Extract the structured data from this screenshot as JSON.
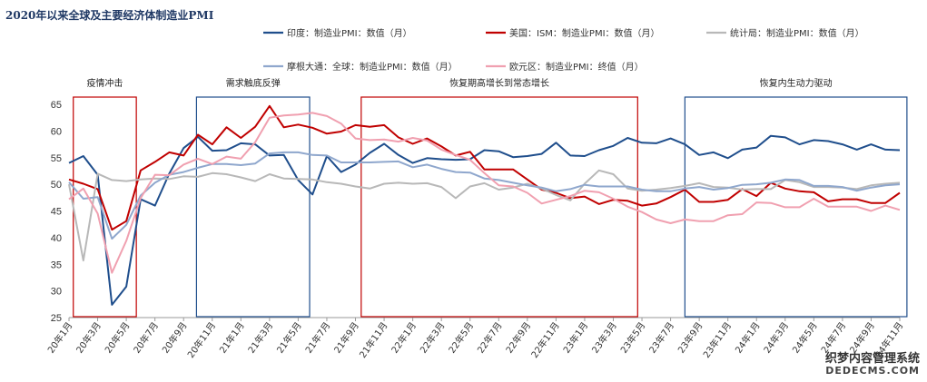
{
  "chart_data": {
    "type": "line",
    "title": "2020年以来全球及主要经济体制造业PMI",
    "ylim": [
      25,
      65
    ],
    "yticks": [
      25,
      30,
      35,
      40,
      45,
      50,
      55,
      60,
      65
    ],
    "x_labels": [
      "20年1月",
      "20年3月",
      "20年5月",
      "20年7月",
      "20年9月",
      "20年11月",
      "21年1月",
      "21年3月",
      "21年5月",
      "21年7月",
      "21年9月",
      "21年11月",
      "22年1月",
      "22年3月",
      "22年5月",
      "22年7月",
      "22年9月",
      "22年11月",
      "23年1月",
      "23年3月",
      "23年5月",
      "23年7月",
      "23年9月",
      "23年11月",
      "24年1月",
      "24年3月",
      "24年5月",
      "24年7月",
      "24年9月",
      "24年11月"
    ],
    "n_points": 59,
    "series": [
      {
        "name": "印度：制造业PMI：数值（月）",
        "color": "#1f4e8c",
        "values": [
          54.0,
          55.3,
          51.8,
          27.4,
          30.8,
          47.2,
          46.0,
          52.0,
          56.8,
          58.9,
          56.3,
          56.4,
          57.7,
          57.5,
          55.4,
          55.5,
          50.8,
          48.1,
          55.3,
          52.3,
          53.7,
          55.9,
          57.6,
          55.5,
          54.0,
          54.9,
          54.7,
          54.6,
          54.7,
          56.4,
          56.2,
          55.1,
          55.3,
          55.7,
          57.8,
          55.4,
          55.3,
          56.4,
          57.2,
          58.7,
          57.8,
          57.7,
          58.6,
          57.5,
          55.5,
          56.0,
          54.9,
          56.5,
          56.9,
          59.1,
          58.8,
          57.5,
          58.3,
          58.1,
          57.5,
          56.5,
          57.5,
          56.5,
          56.4
        ]
      },
      {
        "name": "美国：ISM：制造业PMI：数值（月）",
        "color": "#c00000",
        "values": [
          50.9,
          50.1,
          49.1,
          41.5,
          43.1,
          52.6,
          54.2,
          56.0,
          55.4,
          59.3,
          57.5,
          60.7,
          58.7,
          60.8,
          64.7,
          60.7,
          61.2,
          60.6,
          59.5,
          59.9,
          61.1,
          60.8,
          61.1,
          58.8,
          57.6,
          58.6,
          57.1,
          55.4,
          56.1,
          52.8,
          52.8,
          52.8,
          50.9,
          49.0,
          48.4,
          47.4,
          47.7,
          46.3,
          47.1,
          46.9,
          46.0,
          46.4,
          47.6,
          49.0,
          46.7,
          46.7,
          47.1,
          49.1,
          47.8,
          50.3,
          49.2,
          48.7,
          48.5,
          46.8,
          47.2,
          47.2,
          46.5,
          46.5,
          48.4
        ]
      },
      {
        "name": "统计局：制造业PMI：数值（月）",
        "color": "#b8b8b8",
        "values": [
          50.0,
          35.7,
          52.0,
          50.8,
          50.6,
          50.9,
          51.1,
          51.0,
          51.5,
          51.4,
          52.1,
          51.9,
          51.3,
          50.6,
          51.9,
          51.1,
          51.0,
          50.9,
          50.4,
          50.1,
          49.6,
          49.2,
          50.1,
          50.3,
          50.1,
          50.2,
          49.5,
          47.4,
          49.6,
          50.2,
          49.0,
          49.4,
          50.1,
          49.2,
          48.0,
          47.0,
          50.1,
          52.6,
          51.9,
          49.2,
          48.8,
          49.0,
          49.3,
          49.7,
          50.2,
          49.5,
          49.4,
          49.0,
          49.1,
          49.1,
          50.8,
          50.4,
          49.5,
          49.5,
          49.4,
          49.1,
          49.8,
          50.1,
          50.3
        ]
      },
      {
        "name": "摩根大通：全球：制造业PMI：数值（月）",
        "color": "#8fa7cd",
        "values": [
          50.4,
          47.3,
          47.6,
          39.8,
          42.4,
          47.9,
          50.3,
          51.8,
          52.3,
          53.1,
          53.8,
          53.8,
          53.6,
          53.9,
          55.8,
          56.0,
          56.0,
          55.5,
          55.4,
          54.1,
          54.1,
          54.1,
          54.2,
          54.3,
          53.2,
          53.7,
          52.9,
          52.3,
          52.2,
          51.1,
          50.8,
          50.3,
          49.8,
          49.4,
          48.7,
          49.1,
          49.9,
          49.6,
          49.6,
          49.6,
          49.0,
          48.7,
          48.7,
          49.2,
          49.5,
          49.0,
          49.3,
          49.9,
          50.0,
          50.3,
          50.9,
          50.8,
          49.7,
          49.7,
          49.5,
          48.8,
          49.4,
          49.8,
          50.0
        ]
      },
      {
        "name": "欧元区：制造业PMI：终值（月）",
        "color": "#f0a0b0",
        "values": [
          47.2,
          49.2,
          44.5,
          33.4,
          39.4,
          47.4,
          51.8,
          51.7,
          53.7,
          54.8,
          53.8,
          55.2,
          54.8,
          57.9,
          62.5,
          62.9,
          63.1,
          63.4,
          62.8,
          61.4,
          58.6,
          58.3,
          58.4,
          58.0,
          58.7,
          58.2,
          56.5,
          55.5,
          54.6,
          52.1,
          49.8,
          49.6,
          48.4,
          46.4,
          47.1,
          47.8,
          48.8,
          48.5,
          47.3,
          45.8,
          44.8,
          43.4,
          42.7,
          43.4,
          43.1,
          43.1,
          44.2,
          44.4,
          46.6,
          46.5,
          45.7,
          45.7,
          47.3,
          45.8,
          45.8,
          45.8,
          45.0,
          46.0,
          45.2
        ]
      }
    ],
    "legend": [
      {
        "label": "印度：制造业PMI：数值（月）",
        "color": "#1f4e8c"
      },
      {
        "label": "美国：ISM：制造业PMI：数值（月）",
        "color": "#c00000"
      },
      {
        "label": "统计局：制造业PMI：数值（月）",
        "color": "#b8b8b8"
      },
      {
        "label": "摩根大通：全球：制造业PMI：数值（月）",
        "color": "#8fa7cd"
      },
      {
        "label": "欧元区：制造业PMI：终值（月）",
        "color": "#f0a0b0"
      }
    ],
    "regions": [
      {
        "label": "疫情冲击",
        "start": 0.3,
        "end": 4.7,
        "color": "#c00000"
      },
      {
        "label": "需求触底反弹",
        "start": 8.9,
        "end": 16.8,
        "color": "#1f4e8c"
      },
      {
        "label": "恢复期高增长到常态增长",
        "start": 20.4,
        "end": 39.7,
        "color": "#c00000"
      },
      {
        "label": "恢复内生动力驱动",
        "start": 43.0,
        "end": 58.5,
        "color": "#1f4e8c"
      }
    ]
  },
  "watermark": {
    "line1": "织梦内容管理系统",
    "line2": "DEDECMS.COM"
  }
}
